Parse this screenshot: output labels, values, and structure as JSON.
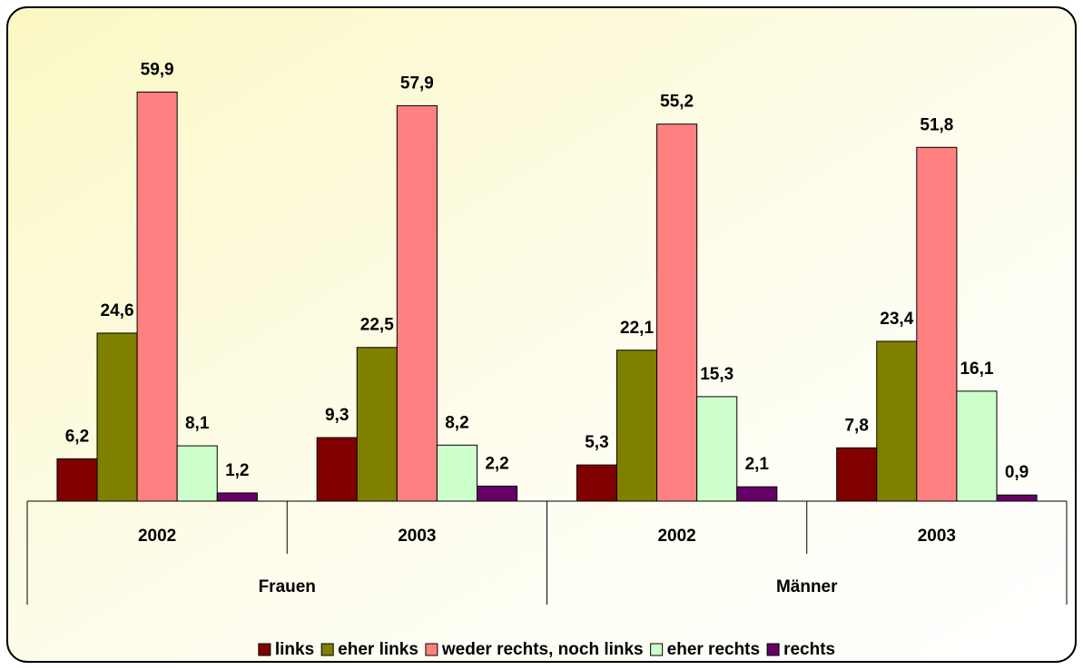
{
  "chart_data": {
    "type": "bar",
    "categories": [
      "2002",
      "2003",
      "2002",
      "2003"
    ],
    "groups": [
      "Frauen",
      "Männer"
    ],
    "series": [
      {
        "name": "links",
        "color": "#800000",
        "values": [
          6.2,
          9.3,
          5.3,
          7.8
        ],
        "value_labels": [
          "6,2",
          "9,3",
          "5,3",
          "7,8"
        ]
      },
      {
        "name": "eher links",
        "color": "#808000",
        "values": [
          24.6,
          22.5,
          22.1,
          23.4
        ],
        "value_labels": [
          "24,6",
          "22,5",
          "22,1",
          "23,4"
        ]
      },
      {
        "name": "weder rechts, noch links",
        "color": "#ff8080",
        "values": [
          59.9,
          57.9,
          55.2,
          51.8
        ],
        "value_labels": [
          "59,9",
          "57,9",
          "55,2",
          "51,8"
        ]
      },
      {
        "name": "eher rechts",
        "color": "#ccffcc",
        "values": [
          8.1,
          8.2,
          15.3,
          16.1
        ],
        "value_labels": [
          "8,1",
          "8,2",
          "15,3",
          "16,1"
        ]
      },
      {
        "name": "rechts",
        "color": "#660066",
        "values": [
          1.2,
          2.2,
          2.1,
          0.9
        ],
        "value_labels": [
          "1,2",
          "2,2",
          "2,1",
          "0,9"
        ]
      }
    ],
    "ylim": [
      0,
      65
    ],
    "legend": "bottom"
  }
}
